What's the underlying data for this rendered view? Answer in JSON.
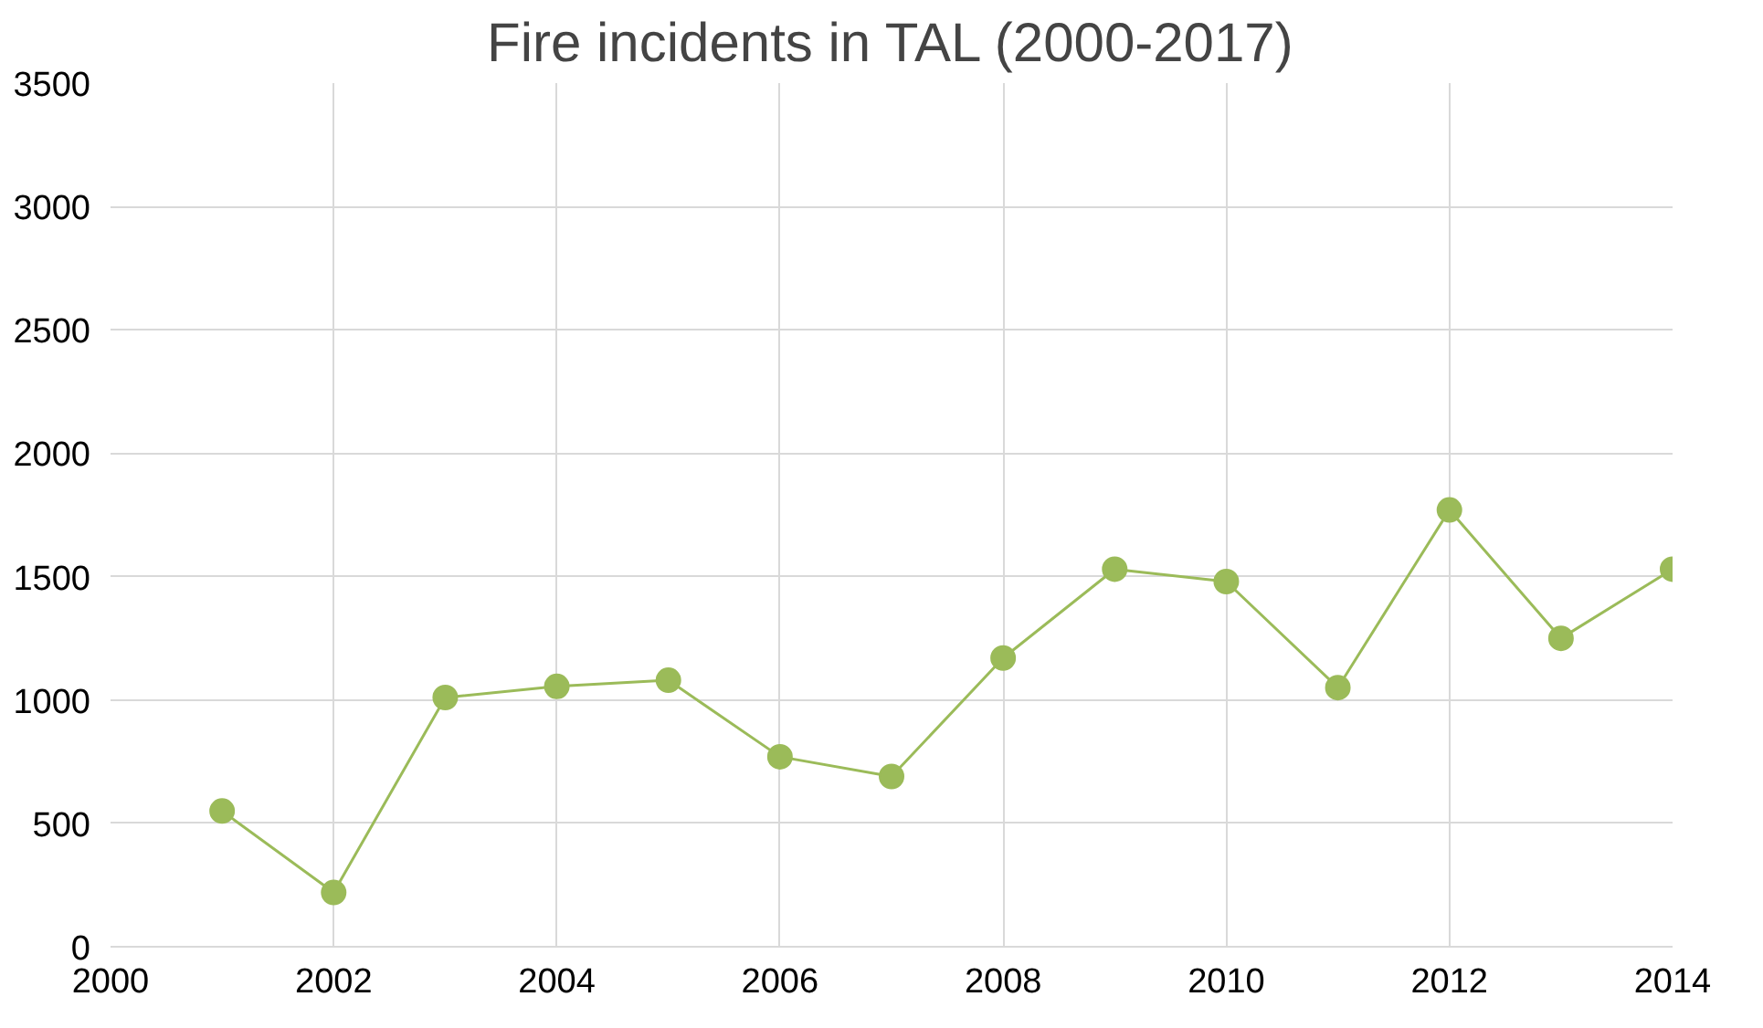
{
  "chart_data": {
    "type": "line",
    "title": "Fire incidents in TAL (2000-2017)",
    "x": [
      2001,
      2002,
      2003,
      2004,
      2005,
      2006,
      2007,
      2008,
      2009,
      2010,
      2011,
      2012,
      2013,
      2014
    ],
    "series": [
      {
        "color": "#9bbb59",
        "values": [
          550,
          220,
          1010,
          1055,
          1080,
          770,
          690,
          1170,
          1530,
          1480,
          1050,
          1770,
          1250,
          1530
        ]
      }
    ],
    "xlim": [
      2000,
      2014
    ],
    "xticks": [
      2000,
      2002,
      2004,
      2006,
      2008,
      2010,
      2012,
      2014
    ],
    "ylim": [
      0,
      3500
    ],
    "yticks": [
      0,
      500,
      1000,
      1500,
      2000,
      2500,
      3000,
      3500
    ],
    "grid": true,
    "marker": "circle",
    "line_style": "solid"
  }
}
